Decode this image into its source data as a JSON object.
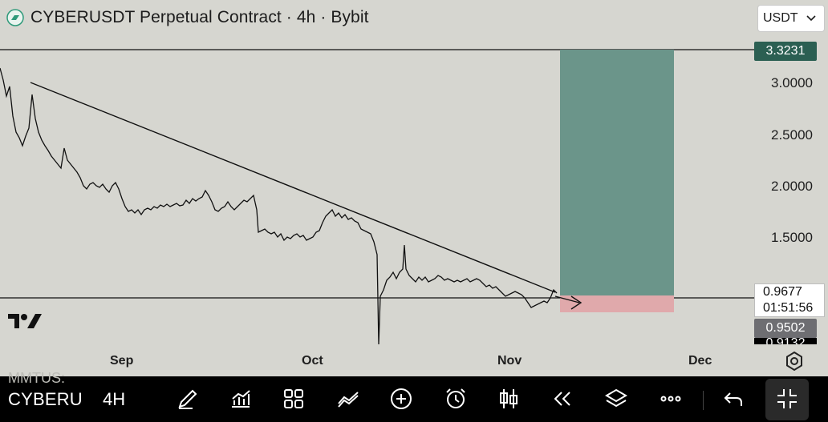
{
  "header": {
    "title": "CYBERUSDT Perpetual Contract · 4h · Bybit",
    "currency": "USDT"
  },
  "y_axis": {
    "ticks": [
      "3.0000",
      "2.5000",
      "2.0000",
      "1.5000"
    ],
    "target_price": "3.3231",
    "current_price": "0.9677",
    "countdown": "01:51:56",
    "stop_price": "0.9502",
    "partial_price": "0.9132"
  },
  "x_axis": {
    "ticks": [
      "Sep",
      "Oct",
      "Nov",
      "Dec"
    ]
  },
  "colors": {
    "background": "#d6d6d0",
    "profit_zone": "#6b958a",
    "loss_zone": "#e0a9ab",
    "target_badge": "#2b5f52",
    "stop_badge": "#6e6e72",
    "toolbar": "#000000"
  },
  "toolbar": {
    "symbol": "CYBERU",
    "timeframe": "4H",
    "ghost_text": "MMTUS:",
    "buttons": [
      "pen-icon",
      "indicators-icon",
      "layout-grid-icon",
      "compare-icon",
      "add-icon",
      "alarm-icon",
      "candles-icon",
      "replay-icon",
      "layers-icon",
      "more-icon",
      "undo-icon",
      "fullscreen-exit-icon"
    ]
  }
}
